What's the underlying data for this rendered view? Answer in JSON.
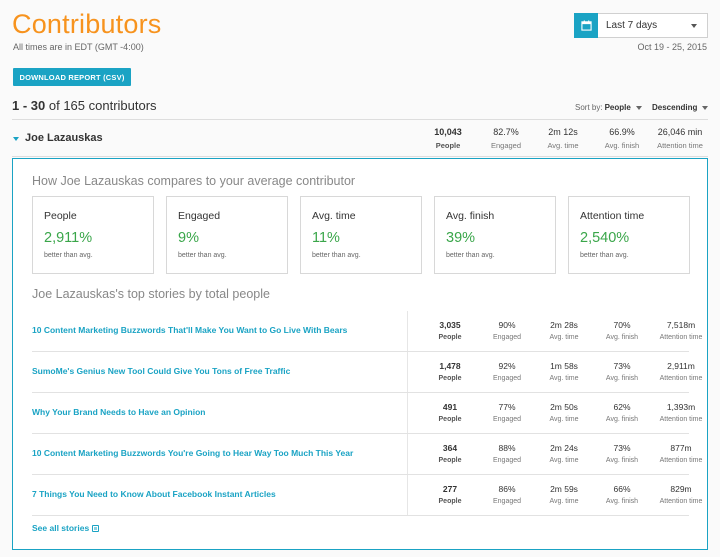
{
  "header": {
    "title": "Contributors",
    "timezone_note": "All times are in EDT (GMT -4:00)",
    "date_range": "Oct 19 - 25, 2015",
    "date_picker": {
      "label": "Last 7 days",
      "icon": "calendar-icon"
    },
    "download_label": "DOWNLOAD REPORT (CSV)"
  },
  "list": {
    "range": "1 - 30",
    "count_text": "of 165 contributors",
    "sort_label": "Sort by:",
    "sort_value": "People",
    "order_value": "Descending"
  },
  "contributor": {
    "name": "Joe Lazauskas",
    "stats": [
      {
        "value": "10,043",
        "label": "People"
      },
      {
        "value": "82.7%",
        "label": "Engaged"
      },
      {
        "value": "2m 12s",
        "label": "Avg. time"
      },
      {
        "value": "66.9%",
        "label": "Avg. finish"
      },
      {
        "value": "26,046 min",
        "label": "Attention time"
      }
    ]
  },
  "compare": {
    "heading": "How Joe Lazauskas compares to your average contributor",
    "cards": [
      {
        "title": "People",
        "value": "2,911%",
        "sub": "better than avg."
      },
      {
        "title": "Engaged",
        "value": "9%",
        "sub": "better than avg."
      },
      {
        "title": "Avg. time",
        "value": "11%",
        "sub": "better than avg."
      },
      {
        "title": "Avg. finish",
        "value": "39%",
        "sub": "better than avg."
      },
      {
        "title": "Attention time",
        "value": "2,540%",
        "sub": "better than avg."
      }
    ]
  },
  "stories": {
    "heading": "Joe Lazauskas's top stories by total people",
    "labels": [
      "People",
      "Engaged",
      "Avg. time",
      "Avg. finish",
      "Attention time"
    ],
    "items": [
      {
        "title": "10 Content Marketing Buzzwords That'll Make You Want to Go Live With Bears",
        "values": [
          "3,035",
          "90%",
          "2m 28s",
          "70%",
          "7,518m"
        ]
      },
      {
        "title": "SumoMe's Genius New Tool Could Give You Tons of Free Traffic",
        "values": [
          "1,478",
          "92%",
          "1m 58s",
          "73%",
          "2,911m"
        ]
      },
      {
        "title": "Why Your Brand Needs to Have an Opinion",
        "values": [
          "491",
          "77%",
          "2m 50s",
          "62%",
          "1,393m"
        ]
      },
      {
        "title": "10 Content Marketing Buzzwords You're Going to Hear Way Too Much This Year",
        "values": [
          "364",
          "88%",
          "2m 24s",
          "73%",
          "877m"
        ]
      },
      {
        "title": "7 Things You Need to Know About Facebook Instant Articles",
        "values": [
          "277",
          "86%",
          "2m 59s",
          "66%",
          "829m"
        ]
      }
    ],
    "see_all": "See all stories"
  },
  "colors": {
    "accent": "#1aa3c4",
    "title": "#f7931e",
    "positive": "#3aa64a"
  }
}
